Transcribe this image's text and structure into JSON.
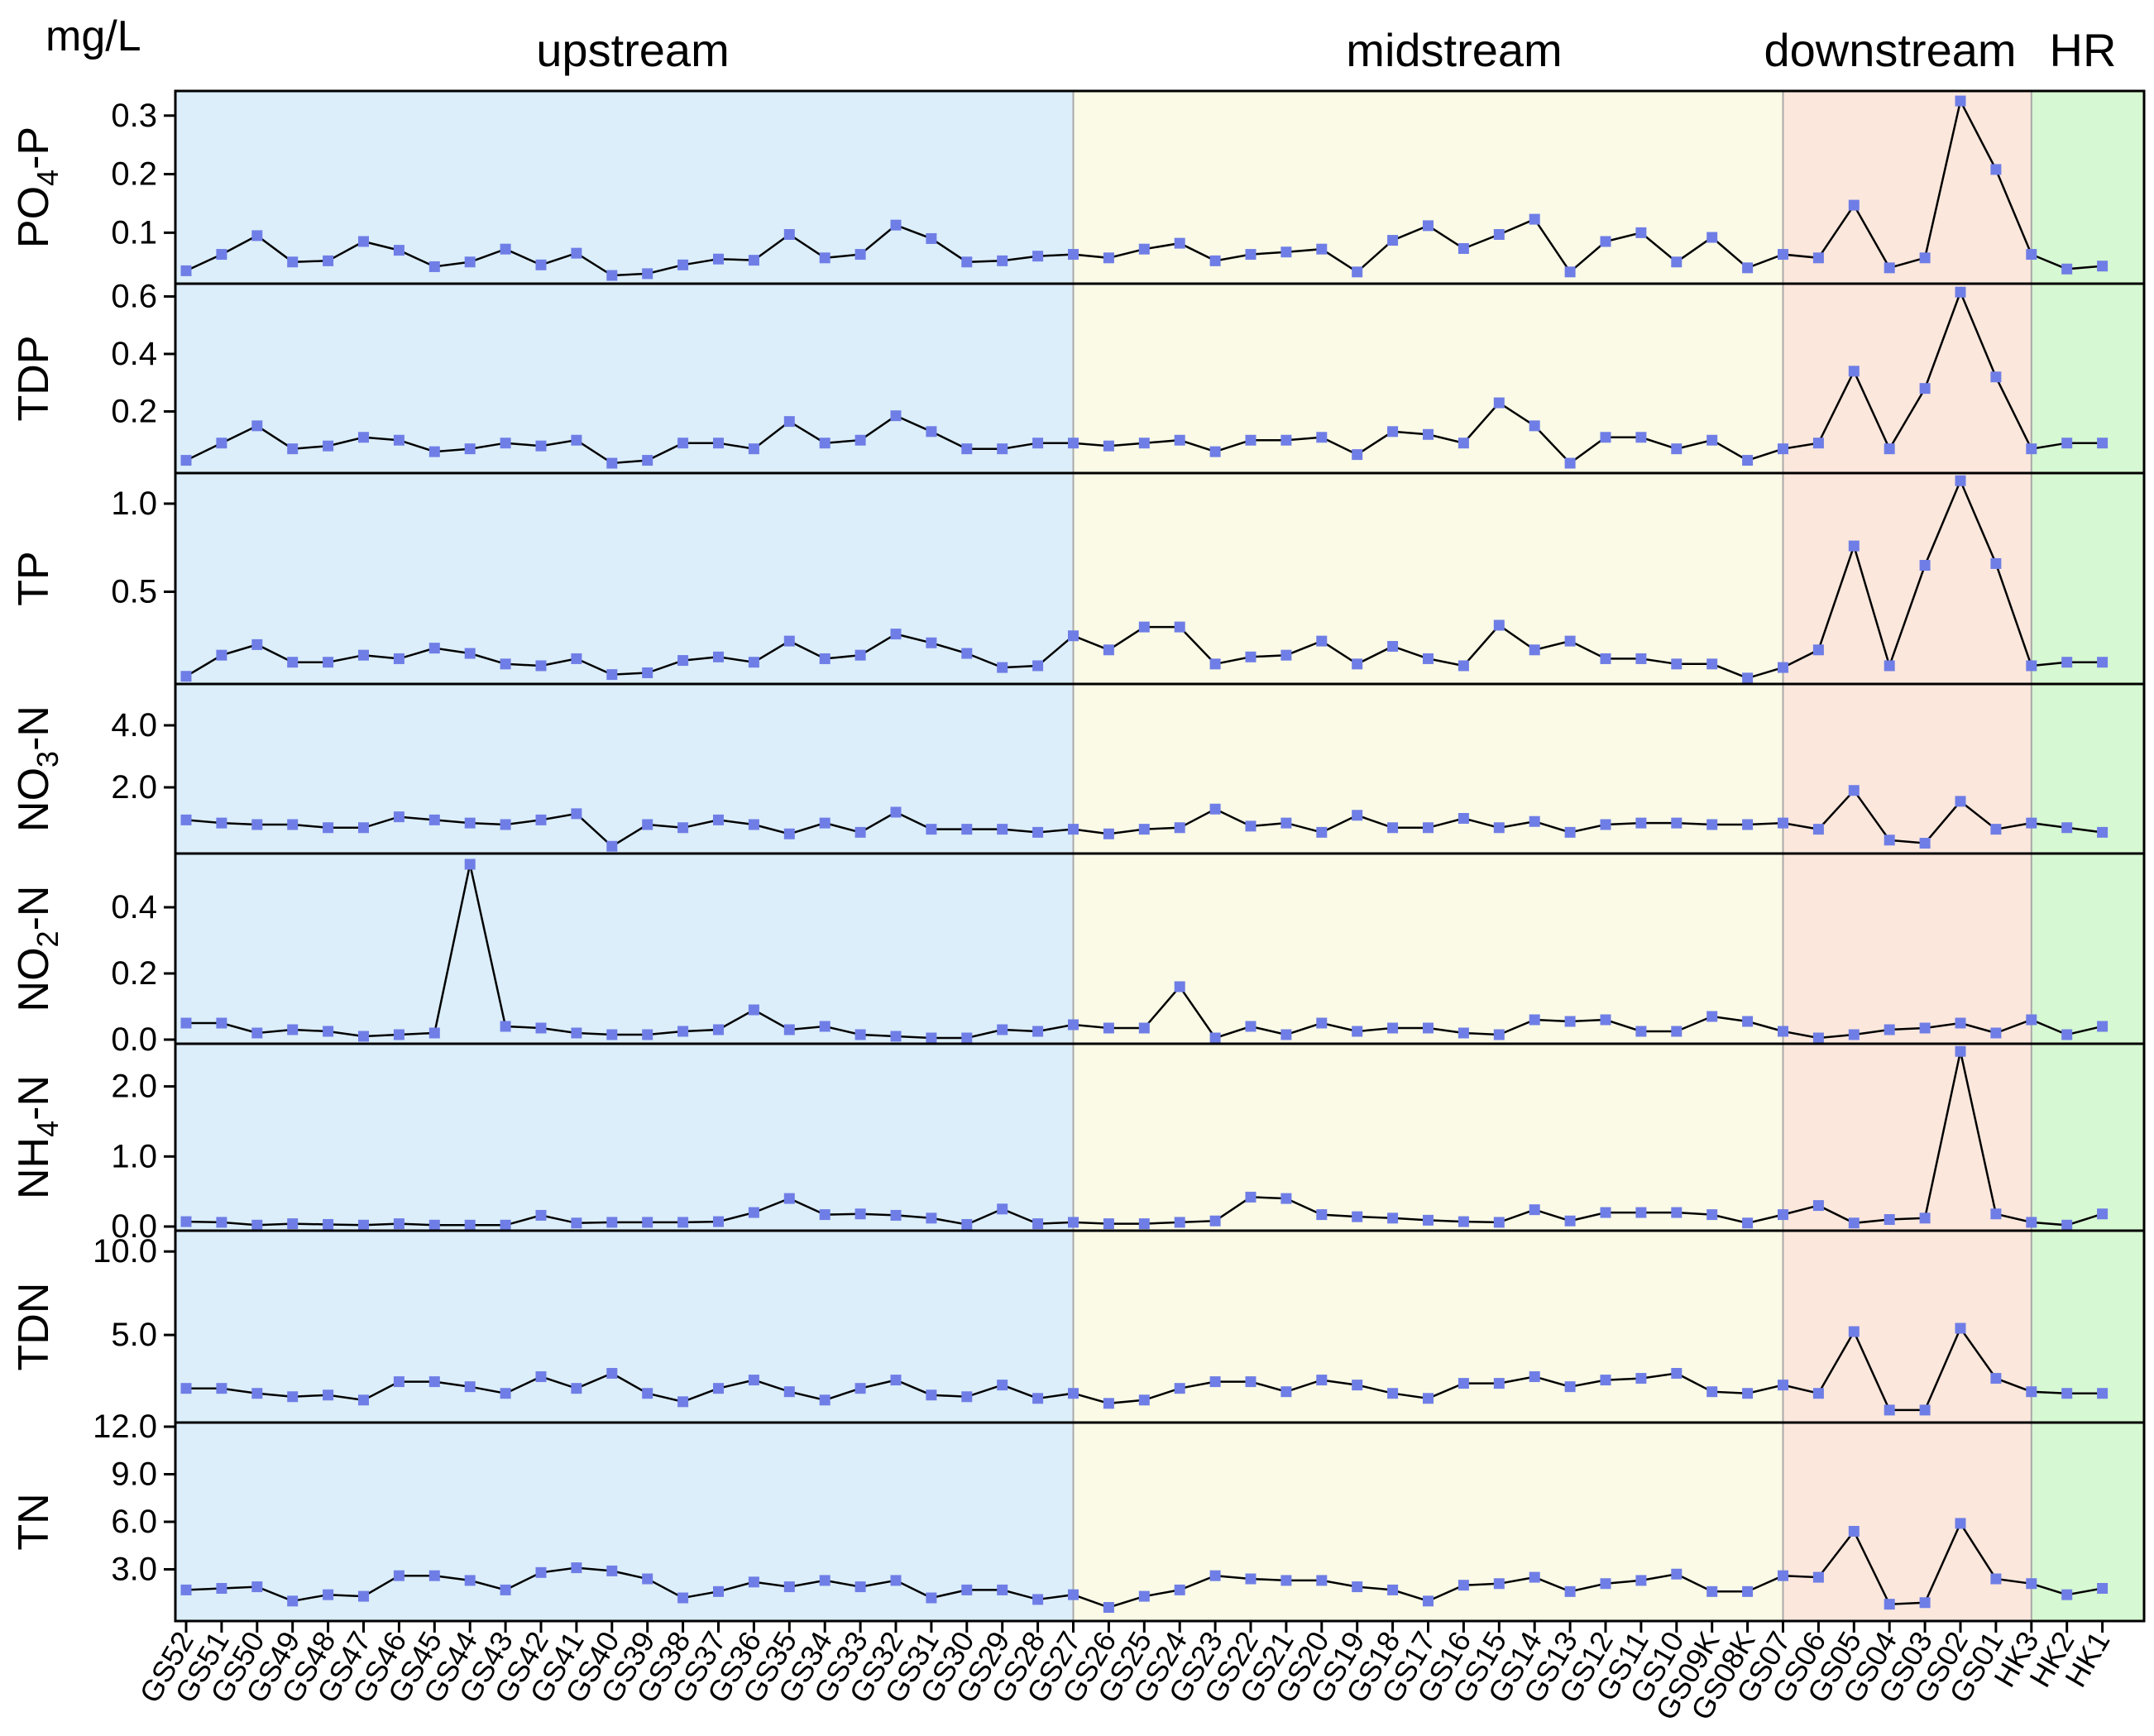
{
  "chart_data": {
    "type": "line",
    "unit_label": "mg/L",
    "colors": {
      "upstream": "#dbeefa",
      "midstream": "#fafae6",
      "downstream": "#fbe7dc",
      "HR": "#d6f8d2",
      "marker": "#6f7ee6",
      "line": "#000000"
    },
    "regions": [
      {
        "name": "upstream",
        "from": "GS52",
        "to": "GS27"
      },
      {
        "name": "midstream",
        "from": "GS27",
        "to": "GS07"
      },
      {
        "name": "downstream",
        "from": "GS07",
        "to": "HK3"
      },
      {
        "name": "HR",
        "from": "HK3",
        "to": "HK1"
      }
    ],
    "categories": [
      "GS52",
      "GS51",
      "GS50",
      "GS49",
      "GS48",
      "GS47",
      "GS46",
      "GS45",
      "GS44",
      "GS43",
      "GS42",
      "GS41",
      "GS40",
      "GS39",
      "GS38",
      "GS37",
      "GS36",
      "GS35",
      "GS34",
      "GS33",
      "GS32",
      "GS31",
      "GS30",
      "GS29",
      "GS28",
      "GS27",
      "GS26",
      "GS25",
      "GS24",
      "GS23",
      "GS22",
      "GS21",
      "GS20",
      "GS19",
      "GS18",
      "GS17",
      "GS16",
      "GS15",
      "GS14",
      "GS13",
      "GS12",
      "GS11",
      "GS10",
      "GS09K",
      "GS08K",
      "GS07",
      "GS06",
      "GS05",
      "GS04",
      "GS03",
      "GS02",
      "GS01",
      "HK3",
      "HK2",
      "HK1"
    ],
    "panels": [
      {
        "label": "PO4-P",
        "label_main": "PO",
        "label_sub": "4",
        "label_end": "-P",
        "ylim": [
          0.02,
          0.335
        ],
        "ticks": [
          0.1,
          0.2,
          0.3
        ],
        "tick_labels": [
          "0.1",
          "0.2",
          "0.3"
        ],
        "values": [
          0.035,
          0.063,
          0.095,
          0.05,
          0.052,
          0.085,
          0.07,
          0.042,
          0.05,
          0.072,
          0.045,
          0.065,
          0.027,
          0.03,
          0.045,
          0.055,
          0.053,
          0.097,
          0.057,
          0.063,
          0.113,
          0.09,
          0.05,
          0.052,
          0.06,
          0.063,
          0.057,
          0.072,
          0.082,
          0.052,
          0.063,
          0.067,
          0.072,
          0.033,
          0.087,
          0.112,
          0.073,
          0.097,
          0.123,
          0.033,
          0.085,
          0.1,
          0.05,
          0.092,
          0.04,
          0.063,
          0.057,
          0.147,
          0.04,
          0.057,
          0.325,
          0.208,
          0.063,
          0.038,
          0.043
        ]
      },
      {
        "label": "TDP",
        "label_main": "TDP",
        "label_sub": "",
        "label_end": "",
        "ylim": [
          0.0,
          0.63
        ],
        "ticks": [
          0.2,
          0.4,
          0.6
        ],
        "tick_labels": [
          "0.2",
          "0.4",
          "0.6"
        ],
        "values": [
          0.03,
          0.09,
          0.15,
          0.07,
          0.08,
          0.11,
          0.1,
          0.06,
          0.07,
          0.09,
          0.08,
          0.1,
          0.02,
          0.03,
          0.09,
          0.09,
          0.07,
          0.165,
          0.09,
          0.1,
          0.185,
          0.13,
          0.07,
          0.07,
          0.09,
          0.09,
          0.08,
          0.09,
          0.1,
          0.06,
          0.1,
          0.1,
          0.11,
          0.05,
          0.13,
          0.12,
          0.09,
          0.23,
          0.15,
          0.02,
          0.11,
          0.11,
          0.07,
          0.1,
          0.03,
          0.07,
          0.09,
          0.34,
          0.07,
          0.28,
          0.615,
          0.32,
          0.07,
          0.09,
          0.09
        ]
      },
      {
        "label": "TP",
        "label_main": "TP",
        "label_sub": "",
        "label_end": "",
        "ylim": [
          0.0,
          1.15
        ],
        "ticks": [
          0.5,
          1.0
        ],
        "tick_labels": [
          "0.5",
          "1.0"
        ],
        "values": [
          0.02,
          0.14,
          0.2,
          0.1,
          0.1,
          0.14,
          0.12,
          0.18,
          0.15,
          0.09,
          0.08,
          0.12,
          0.03,
          0.04,
          0.11,
          0.13,
          0.1,
          0.22,
          0.12,
          0.14,
          0.26,
          0.21,
          0.15,
          0.07,
          0.08,
          0.25,
          0.17,
          0.3,
          0.3,
          0.09,
          0.13,
          0.14,
          0.22,
          0.09,
          0.19,
          0.12,
          0.08,
          0.31,
          0.17,
          0.22,
          0.12,
          0.12,
          0.09,
          0.09,
          0.01,
          0.07,
          0.17,
          0.76,
          0.08,
          0.65,
          1.13,
          0.66,
          0.08,
          0.1,
          0.1
        ]
      },
      {
        "label": "NO3-N",
        "label_main": "NO",
        "label_sub": "3",
        "label_end": "-N",
        "ylim": [
          0.0,
          5.2
        ],
        "ticks": [
          2.0,
          4.0
        ],
        "tick_labels": [
          "2.0",
          "4.0"
        ],
        "values": [
          0.95,
          0.85,
          0.8,
          0.8,
          0.7,
          0.7,
          1.05,
          0.95,
          0.85,
          0.8,
          0.95,
          1.15,
          0.1,
          0.8,
          0.7,
          0.95,
          0.8,
          0.5,
          0.85,
          0.55,
          1.2,
          0.65,
          0.65,
          0.65,
          0.55,
          0.65,
          0.5,
          0.65,
          0.7,
          1.3,
          0.75,
          0.85,
          0.55,
          1.1,
          0.7,
          0.7,
          1.0,
          0.7,
          0.9,
          0.55,
          0.8,
          0.85,
          0.85,
          0.8,
          0.8,
          0.85,
          0.65,
          1.9,
          0.3,
          0.2,
          1.55,
          0.65,
          0.85,
          0.7,
          0.55
        ]
      },
      {
        "label": "NO2-N",
        "label_main": "NO",
        "label_sub": "2",
        "label_end": "-N",
        "ylim": [
          0.0,
          0.55
        ],
        "ticks": [
          0.0,
          0.2,
          0.4
        ],
        "tick_labels": [
          "0.0",
          "0.2",
          "0.4"
        ],
        "values": [
          0.05,
          0.05,
          0.02,
          0.03,
          0.025,
          0.01,
          0.015,
          0.02,
          0.53,
          0.04,
          0.035,
          0.02,
          0.015,
          0.015,
          0.025,
          0.03,
          0.09,
          0.03,
          0.04,
          0.015,
          0.01,
          0.005,
          0.005,
          0.03,
          0.025,
          0.045,
          0.035,
          0.035,
          0.16,
          0.005,
          0.04,
          0.015,
          0.05,
          0.025,
          0.035,
          0.035,
          0.02,
          0.015,
          0.06,
          0.055,
          0.06,
          0.025,
          0.025,
          0.07,
          0.055,
          0.025,
          0.005,
          0.015,
          0.03,
          0.035,
          0.05,
          0.02,
          0.06,
          0.015,
          0.04
        ]
      },
      {
        "label": "NH4-N",
        "label_main": "NH",
        "label_sub": "4",
        "label_end": "-N",
        "ylim": [
          0.0,
          2.55
        ],
        "ticks": [
          0.0,
          1.0,
          2.0
        ],
        "tick_labels": [
          "0.0",
          "1.0",
          "2.0"
        ],
        "values": [
          0.07,
          0.06,
          0.02,
          0.04,
          0.03,
          0.02,
          0.04,
          0.02,
          0.02,
          0.02,
          0.16,
          0.05,
          0.06,
          0.06,
          0.06,
          0.07,
          0.2,
          0.4,
          0.17,
          0.18,
          0.16,
          0.12,
          0.03,
          0.25,
          0.04,
          0.06,
          0.04,
          0.04,
          0.06,
          0.08,
          0.42,
          0.4,
          0.17,
          0.14,
          0.12,
          0.09,
          0.07,
          0.06,
          0.24,
          0.08,
          0.2,
          0.2,
          0.2,
          0.17,
          0.05,
          0.17,
          0.3,
          0.05,
          0.1,
          0.12,
          2.5,
          0.18,
          0.06,
          0.02,
          0.18
        ]
      },
      {
        "label": "TDN",
        "label_main": "TDN",
        "label_sub": "",
        "label_end": "",
        "ylim": [
          0.0,
          11.0
        ],
        "ticks": [
          5.0,
          10.0
        ],
        "tick_labels": [
          "5.0",
          "10.0"
        ],
        "values": [
          1.8,
          1.8,
          1.5,
          1.3,
          1.4,
          1.1,
          2.2,
          2.2,
          1.9,
          1.5,
          2.5,
          1.8,
          2.7,
          1.5,
          1.0,
          1.8,
          2.3,
          1.6,
          1.1,
          1.8,
          2.3,
          1.4,
          1.3,
          2.0,
          1.2,
          1.5,
          0.9,
          1.1,
          1.8,
          2.2,
          2.2,
          1.6,
          2.3,
          2.0,
          1.5,
          1.2,
          2.1,
          2.1,
          2.5,
          1.9,
          2.3,
          2.4,
          2.7,
          1.6,
          1.5,
          2.0,
          1.5,
          5.2,
          0.5,
          0.5,
          5.4,
          2.4,
          1.6,
          1.5,
          1.5
        ]
      },
      {
        "label": "TN",
        "label_main": "TN",
        "label_sub": "",
        "label_end": "",
        "ylim": [
          0.0,
          12.0
        ],
        "ticks": [
          3.0,
          6.0,
          9.0,
          12.0
        ],
        "tick_labels": [
          "3.0",
          "6.0",
          "9.0",
          "12.0"
        ],
        "values": [
          1.7,
          1.8,
          1.9,
          1.0,
          1.4,
          1.3,
          2.6,
          2.6,
          2.3,
          1.7,
          2.8,
          3.1,
          2.9,
          2.4,
          1.2,
          1.6,
          2.2,
          1.9,
          2.3,
          1.9,
          2.3,
          1.2,
          1.7,
          1.7,
          1.1,
          1.4,
          0.6,
          1.3,
          1.7,
          2.6,
          2.4,
          2.3,
          2.3,
          1.9,
          1.7,
          1.0,
          2.0,
          2.1,
          2.5,
          1.6,
          2.1,
          2.3,
          2.7,
          1.6,
          1.6,
          2.6,
          2.5,
          5.4,
          0.8,
          0.9,
          5.9,
          2.4,
          2.1,
          1.4,
          1.8
        ]
      }
    ]
  }
}
